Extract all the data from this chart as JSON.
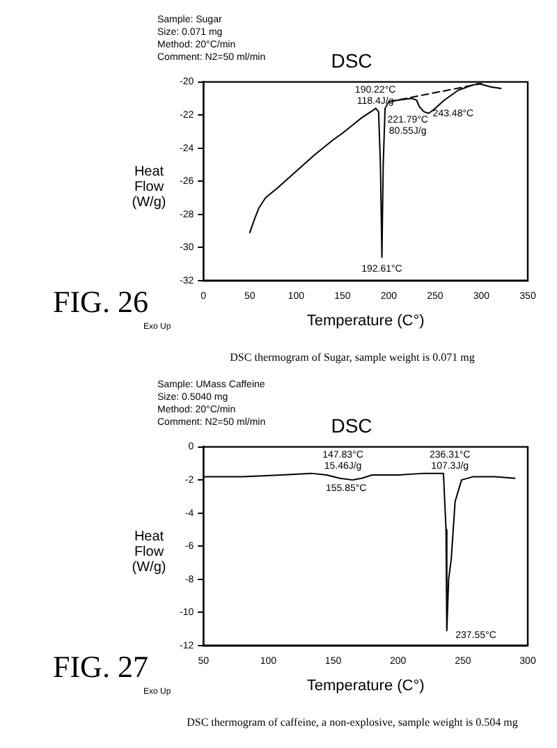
{
  "chart_data": [
    {
      "type": "line",
      "title": "DSC",
      "xlabel": "Temperature (C°)",
      "ylabel": "Heat Flow (W/g)",
      "xlim": [
        0,
        350
      ],
      "xticks": [
        0,
        50,
        100,
        150,
        200,
        250,
        300,
        350
      ],
      "ylim": [
        -32,
        -20
      ],
      "yticks": [
        -20,
        -22,
        -24,
        -26,
        -28,
        -30,
        -32
      ],
      "grid": false,
      "legend": false,
      "marker": "none",
      "series": [
        {
          "color": "#000000",
          "line_style": "solid",
          "x": [
            50,
            55,
            60,
            67,
            80,
            100,
            120,
            140,
            150,
            170,
            186,
            189,
            191,
            192.6,
            194,
            196,
            200,
            210,
            225,
            230,
            233,
            238,
            243,
            248,
            260,
            275,
            290,
            297,
            310,
            321
          ],
          "values": [
            -29.1,
            -28.3,
            -27.6,
            -27.0,
            -26.4,
            -25.4,
            -24.4,
            -23.5,
            -23.1,
            -22.2,
            -21.6,
            -21.8,
            -25,
            -30.6,
            -25,
            -21.6,
            -21.2,
            -21.1,
            -21.0,
            -21.1,
            -21.5,
            -21.8,
            -21.9,
            -21.7,
            -21.1,
            -20.5,
            -20.2,
            -20.1,
            -20.3,
            -20.4
          ]
        },
        {
          "color": "#000000",
          "line_style": "dashed",
          "x": [
            200,
            300
          ],
          "values": [
            -21.2,
            -20.1
          ]
        }
      ],
      "annotations": [
        "Sample: Sugar",
        "Size: 0.071 mg",
        "Method: 20°C/min",
        "Comment: N2=50 ml/min",
        "FIG. 26",
        "Exo Up",
        "DSC thermogram of Sugar, sample weight is 0.071 mg",
        "190.22°C\n118.4J/g",
        "221.79°C\n80.55J/g",
        "243.48°C",
        "192.61°C"
      ]
    },
    {
      "type": "line",
      "title": "DSC",
      "xlabel": "Temperature (C°)",
      "ylabel": "Heat Flow (W/g)",
      "xlim": [
        50,
        300
      ],
      "xticks": [
        50,
        100,
        150,
        200,
        250,
        300
      ],
      "ylim": [
        -12,
        0
      ],
      "yticks": [
        0,
        -2,
        -4,
        -6,
        -8,
        -10,
        -12
      ],
      "grid": false,
      "legend": false,
      "marker": "none",
      "series": [
        {
          "color": "#000000",
          "line_style": "solid",
          "x": [
            51,
            80,
            110,
            133,
            145,
            155,
            165,
            172,
            180,
            200,
            220,
            235,
            237,
            237.6,
            239,
            241,
            244,
            249,
            258,
            275,
            290
          ],
          "values": [
            -1.8,
            -1.8,
            -1.7,
            -1.6,
            -1.7,
            -1.9,
            -2.0,
            -1.9,
            -1.7,
            -1.7,
            -1.6,
            -1.6,
            -5,
            -11.1,
            -8,
            -6.8,
            -3.3,
            -2.0,
            -1.8,
            -1.8,
            -1.9
          ]
        }
      ],
      "annotations": [
        "Sample: UMass Caffeine",
        "Size: 0.5040 mg",
        "Method: 20°C/min",
        "Comment: N2=50 ml/min",
        "FIG. 27",
        "Exo Up",
        "DSC thermogram of caffeine, a non-explosive, sample weight is 0.504 mg",
        "147.83°C\n15.46J/g",
        "155.85°C",
        "236.31°C\n107.3J/g",
        "237.55°C"
      ]
    }
  ]
}
